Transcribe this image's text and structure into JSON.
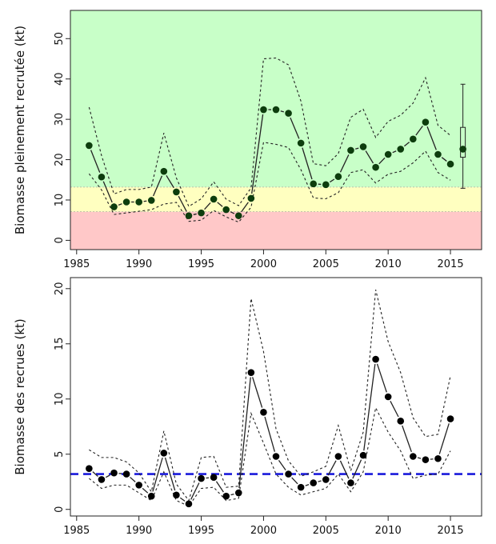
{
  "chart_data": [
    {
      "type": "line",
      "ylabel": "Biomasse pleinement recrutée (kt)",
      "xlim": [
        1984.5,
        2017.5
      ],
      "ylim": [
        -2.3,
        57
      ],
      "xticks": [
        1985,
        1990,
        1995,
        2000,
        2005,
        2010,
        2015
      ],
      "yticks": [
        0,
        10,
        20,
        30,
        40,
        50
      ],
      "zones": [
        {
          "name": "red",
          "from": -2.3,
          "to": 7.1,
          "color": "#ffc8c8"
        },
        {
          "name": "yellow",
          "from": 7.1,
          "to": 13.2,
          "color": "#ffffc0"
        },
        {
          "name": "green",
          "from": 13.2,
          "to": 57,
          "color": "#c8ffc8"
        }
      ],
      "point_color": "#0d3d0d",
      "x": [
        1986,
        1987,
        1988,
        1989,
        1990,
        1991,
        1992,
        1993,
        1994,
        1995,
        1996,
        1997,
        1998,
        1999,
        2000,
        2001,
        2002,
        2003,
        2004,
        2005,
        2006,
        2007,
        2008,
        2009,
        2010,
        2011,
        2012,
        2013,
        2014,
        2015
      ],
      "series": [
        {
          "role": "estimate",
          "values": [
            23.5,
            15.7,
            8.3,
            9.5,
            9.5,
            9.9,
            17.1,
            12.0,
            6.1,
            6.8,
            10.2,
            7.6,
            6.1,
            10.4,
            32.4,
            32.4,
            31.5,
            24.1,
            14.0,
            13.8,
            15.8,
            22.3,
            23.2,
            18.1,
            21.3,
            22.6,
            25.1,
            29.3,
            21.3,
            18.9
          ]
        },
        {
          "role": "upper",
          "values": [
            33.0,
            21.0,
            11.5,
            12.6,
            12.6,
            13.2,
            26.6,
            15.5,
            8.4,
            10.3,
            14.5,
            10.2,
            8.6,
            13.0,
            45.0,
            45.2,
            43.5,
            34.5,
            19.0,
            18.5,
            21.5,
            30.5,
            32.5,
            25.5,
            29.5,
            31.0,
            34.0,
            40.3,
            28.5,
            26.0
          ]
        },
        {
          "role": "lower",
          "values": [
            16.5,
            12.5,
            6.4,
            6.8,
            7.2,
            7.6,
            9.0,
            9.4,
            4.7,
            5.0,
            7.4,
            5.8,
            4.5,
            8.2,
            24.3,
            23.8,
            23.0,
            17.5,
            10.5,
            10.3,
            11.8,
            16.8,
            17.5,
            14.2,
            16.4,
            17.1,
            19.2,
            22.1,
            16.8,
            14.9
          ]
        }
      ],
      "projection": {
        "x": 2016,
        "median": 22.6,
        "q1": 20.6,
        "q3": 28.0,
        "min": 12.9,
        "max": 38.7
      }
    },
    {
      "type": "line",
      "ylabel": "Biomasse des recrues (kt)",
      "xlim": [
        1984.5,
        2017.5
      ],
      "ylim": [
        -0.6,
        21
      ],
      "xticks": [
        1985,
        1990,
        1995,
        2000,
        2005,
        2010,
        2015
      ],
      "yticks": [
        0,
        5,
        10,
        15,
        20
      ],
      "reference_line": {
        "y": 3.2,
        "color": "#1a1adb"
      },
      "point_color": "#000000",
      "x": [
        1986,
        1987,
        1988,
        1989,
        1990,
        1991,
        1992,
        1993,
        1994,
        1995,
        1996,
        1997,
        1998,
        1999,
        2000,
        2001,
        2002,
        2003,
        2004,
        2005,
        2006,
        2007,
        2008,
        2009,
        2010,
        2011,
        2012,
        2013,
        2014,
        2015
      ],
      "series": [
        {
          "role": "estimate",
          "values": [
            3.7,
            2.7,
            3.3,
            3.2,
            2.2,
            1.2,
            5.1,
            1.3,
            0.5,
            2.8,
            2.9,
            1.2,
            1.5,
            12.4,
            8.8,
            4.8,
            3.2,
            2.0,
            2.4,
            2.7,
            4.8,
            2.4,
            4.9,
            13.6,
            10.2,
            8.0,
            4.8,
            4.5,
            4.6,
            8.2
          ]
        },
        {
          "role": "upper",
          "values": [
            5.4,
            4.7,
            4.7,
            4.3,
            3.3,
            1.6,
            7.1,
            2.3,
            0.8,
            4.7,
            4.8,
            2.0,
            2.1,
            19.1,
            14.3,
            7.3,
            4.4,
            3.0,
            3.4,
            3.9,
            7.6,
            3.5,
            7.0,
            19.9,
            15.2,
            12.4,
            8.3,
            6.6,
            6.8,
            12.1
          ]
        },
        {
          "role": "lower",
          "values": [
            2.8,
            1.9,
            2.2,
            2.2,
            1.5,
            0.8,
            3.4,
            0.8,
            0.3,
            1.9,
            2.0,
            0.8,
            1.0,
            8.7,
            6.0,
            3.2,
            2.0,
            1.3,
            1.6,
            1.9,
            3.2,
            1.6,
            3.4,
            9.2,
            7.0,
            5.3,
            2.8,
            3.1,
            3.2,
            5.3
          ]
        }
      ]
    }
  ]
}
